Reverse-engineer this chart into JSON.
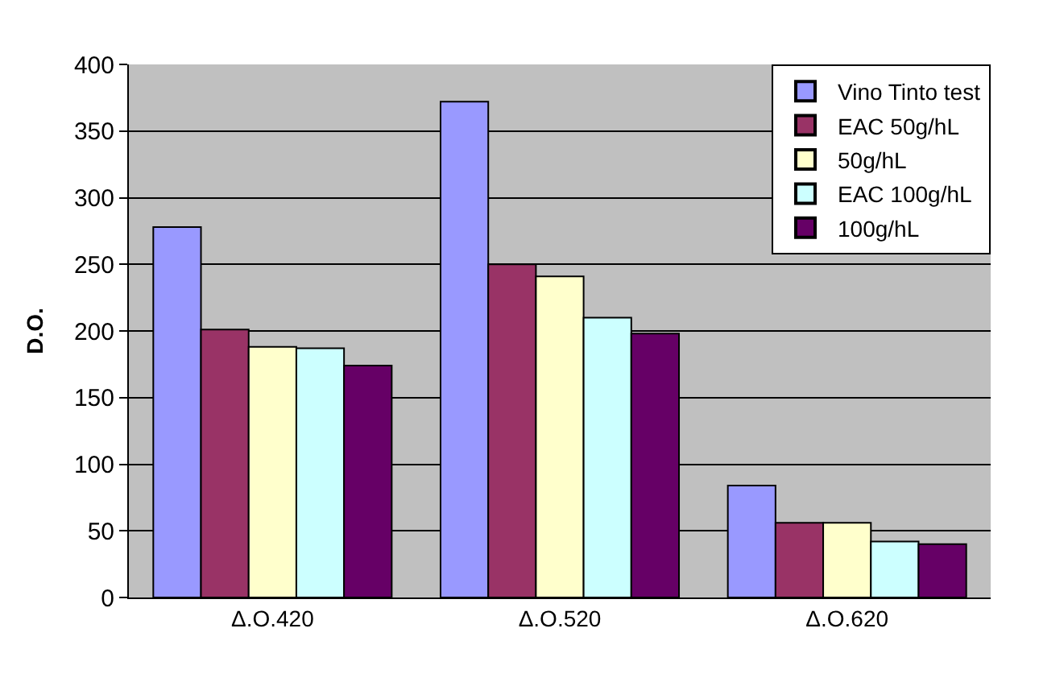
{
  "chart_data": {
    "type": "bar",
    "ylabel": "D.O.",
    "categories": [
      "Δ.O.420",
      "Δ.O.520",
      "Δ.O.620"
    ],
    "series": [
      {
        "name": "Vino Tinto test",
        "color": "#9999ff",
        "values": [
          278,
          372,
          84
        ]
      },
      {
        "name": "EAC 50g/hL",
        "color": "#993366",
        "values": [
          201,
          250,
          56
        ]
      },
      {
        "name": "50g/hL",
        "color": "#ffffcc",
        "values": [
          188,
          241,
          56
        ]
      },
      {
        "name": "EAC 100g/hL",
        "color": "#ccffff",
        "values": [
          187,
          210,
          42
        ]
      },
      {
        "name": "100g/hL",
        "color": "#660066",
        "values": [
          174,
          198,
          40
        ]
      }
    ],
    "ylim": [
      0,
      400
    ],
    "yticks": [
      0,
      50,
      100,
      150,
      200,
      250,
      300,
      350,
      400
    ],
    "grid": "y",
    "legend": "top right"
  }
}
